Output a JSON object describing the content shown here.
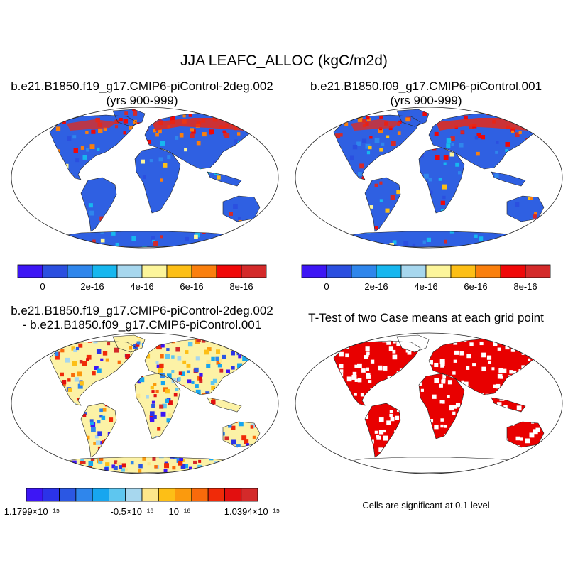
{
  "page_title": "JJA LEAFC_ALLOC (kgC/m2d)",
  "panels": {
    "p1": {
      "line1": "b.e21.B1850.f19_g17.CMIP6-piControl-2deg.002",
      "line2": "(yrs 900-999)"
    },
    "p2": {
      "line1": "b.e21.B1850.f09_g17.CMIP6-piControl.001",
      "line2": "(yrs 900-999)"
    },
    "p3": {
      "line1": "b.e21.B1850.f19_g17.CMIP6-piControl-2deg.002",
      "line2": "- b.e21.B1850.f09_g17.CMIP6-piControl.001"
    },
    "p4": {
      "line1": "T-Test of two Case means at each grid point",
      "line2": ""
    }
  },
  "colorbar_top": {
    "colors": [
      "#3d16f5",
      "#2b4fe0",
      "#2f86ec",
      "#17b7ef",
      "#a7d7ee",
      "#fcf59b",
      "#fdbf16",
      "#fa7f0d",
      "#f00808",
      "#d42a2a"
    ],
    "tick_labels": [
      "0",
      "2e-16",
      "4e-16",
      "6e-16",
      "8e-16"
    ]
  },
  "colorbar_bottom": {
    "colors": [
      "#3d16f5",
      "#2b33e8",
      "#2b57e3",
      "#2f86ec",
      "#17a6ef",
      "#5ec6ef",
      "#a7d7ee",
      "#fde68a",
      "#fdbf16",
      "#fb9a0d",
      "#f86a0b",
      "#f02a08",
      "#e20f0f",
      "#d42a2a"
    ],
    "label_left": "1.1799×10⁻¹⁵",
    "label_mid1": "-0.5×10⁻¹⁶",
    "label_mid2": "10⁻¹⁶",
    "label_right": "1.0394×10⁻¹⁵"
  },
  "significance_note": "Cells are significant at 0.1 level",
  "colors": {
    "land_base": "#2f60e2",
    "ocean": "#ffffff",
    "significant": "#e80000",
    "diff_base": "#fcf2a6"
  }
}
